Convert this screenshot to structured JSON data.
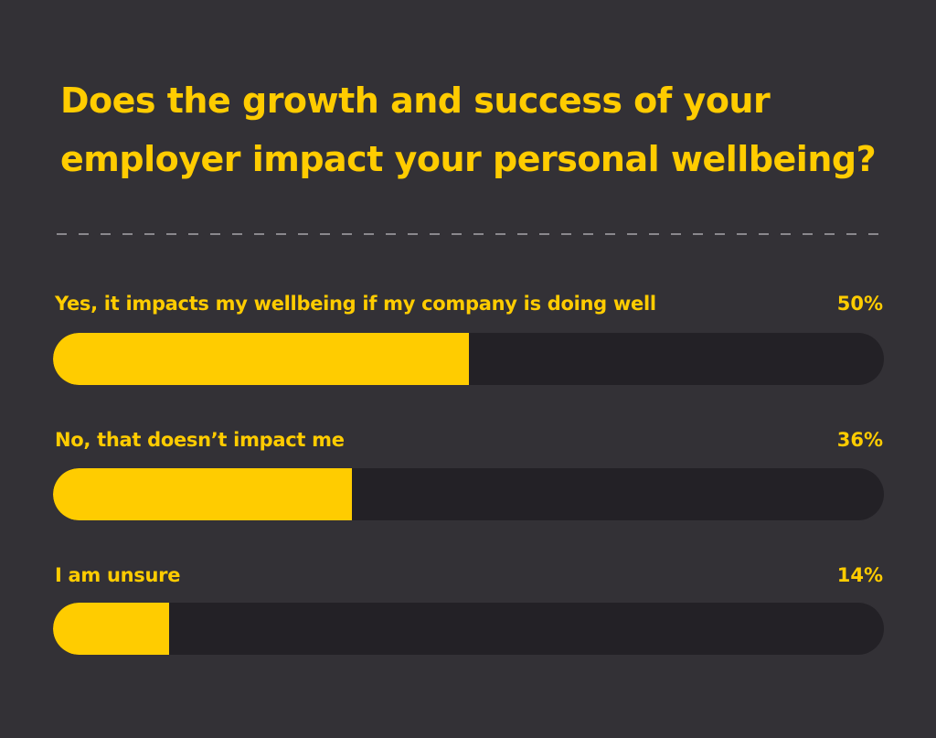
{
  "chart_data": {
    "type": "bar",
    "orientation": "horizontal",
    "title_lines": [
      "Does the growth and success of your",
      "employer impact your personal wellbeing?"
    ],
    "categories": [
      "Yes, it impacts my wellbeing if my company is doing well",
      "No, that doesn’t impact me",
      "I am unsure"
    ],
    "values": [
      50,
      36,
      14
    ],
    "value_labels": [
      "50%",
      "36%",
      "14%"
    ],
    "xlim": [
      0,
      100
    ],
    "grid": false,
    "legend": "none",
    "colors": {
      "background": "#333136",
      "accent": "#ffcc00",
      "track": "#232126",
      "divider": "#8a888d"
    }
  }
}
